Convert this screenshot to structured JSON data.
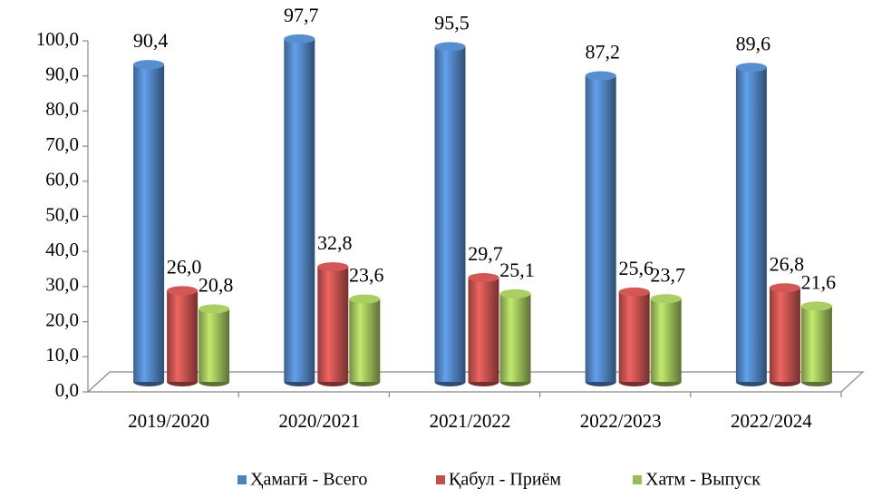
{
  "chart_data": {
    "type": "bar3d",
    "categories": [
      "2019/2020",
      "2020/2021",
      "2021/2022",
      "2022/2023",
      "2022/2024"
    ],
    "series": [
      {
        "name": "Ҳамагӣ - Всего",
        "color": "#4f81bd",
        "values": [
          90.4,
          97.7,
          95.5,
          87.2,
          89.6
        ],
        "value_labels": [
          "90,4",
          "97,7",
          "95,5",
          "87,2",
          "89,6"
        ]
      },
      {
        "name": "Қабул - Приём",
        "color": "#c0504d",
        "values": [
          26.0,
          32.8,
          29.7,
          25.6,
          26.8
        ],
        "value_labels": [
          "26,0",
          "32,8",
          "29,7",
          "25,6",
          "26,8"
        ]
      },
      {
        "name": "Хатм - Выпуск",
        "color": "#9bbb59",
        "values": [
          20.8,
          23.6,
          25.1,
          23.7,
          21.6
        ],
        "value_labels": [
          "20,8",
          "23,6",
          "25,1",
          "23,7",
          "21,6"
        ]
      }
    ],
    "ylim": [
      0,
      100
    ],
    "yticks": [
      {
        "value": 0,
        "label": "0,0"
      },
      {
        "value": 10,
        "label": "10,0"
      },
      {
        "value": 20,
        "label": "20,0"
      },
      {
        "value": 30,
        "label": "30,0"
      },
      {
        "value": 40,
        "label": "40,0"
      },
      {
        "value": 50,
        "label": "50,0"
      },
      {
        "value": 60,
        "label": "60,0"
      },
      {
        "value": 70,
        "label": "70,0"
      },
      {
        "value": 80,
        "label": "80,0"
      },
      {
        "value": 90,
        "label": "90,0"
      },
      {
        "value": 100,
        "label": "100,0"
      }
    ],
    "legend": "bottom"
  }
}
